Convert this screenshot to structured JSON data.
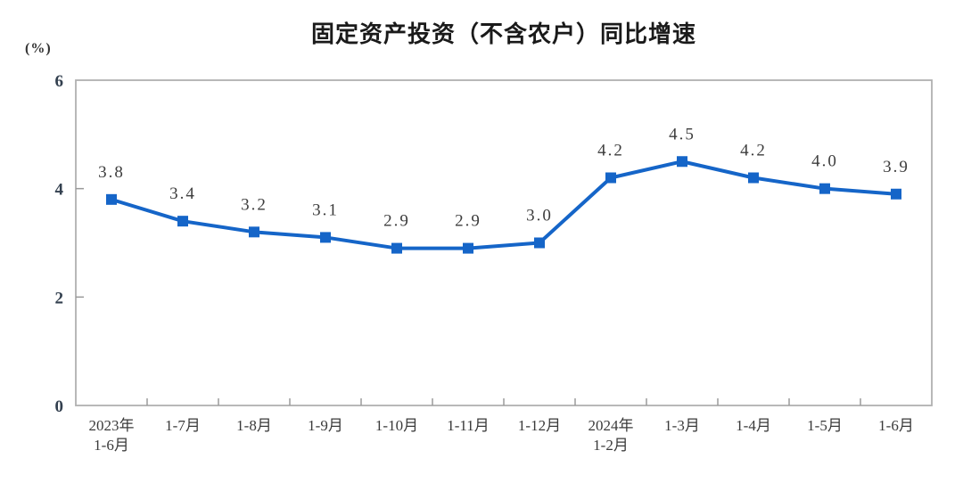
{
  "chart": {
    "title": "固定资产投资（不含农户）同比增速",
    "unit_label": "(%)"
  },
  "chart_data": {
    "type": "line",
    "title": "固定资产投资（不含农户）同比增速",
    "xlabel": "",
    "ylabel": "(%)",
    "categories": [
      "2023年\n1-6月",
      "1-7月",
      "1-8月",
      "1-9月",
      "1-10月",
      "1-11月",
      "1-12月",
      "2024年\n1-2月",
      "1-3月",
      "1-4月",
      "1-5月",
      "1-6月"
    ],
    "values": [
      3.8,
      3.4,
      3.2,
      3.1,
      2.9,
      2.9,
      3.0,
      4.2,
      4.5,
      4.2,
      4.0,
      3.9
    ],
    "data_labels": [
      "3.8",
      "3.4",
      "3.2",
      "3.1",
      "2.9",
      "2.9",
      "3.0",
      "4.2",
      "4.5",
      "4.2",
      "4.0",
      "3.9"
    ],
    "ylim": [
      0,
      6
    ],
    "yticks": [
      0,
      2,
      4,
      6
    ],
    "grid": false,
    "legend": "none",
    "marker": "square",
    "line_color": "#1565c8",
    "marker_color": "#1565c8",
    "border_color": "#b0b0b0",
    "axis_color": "#9a9a9a",
    "label_color": "#3d3d3d"
  }
}
